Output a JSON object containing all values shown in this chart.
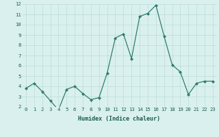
{
  "x": [
    0,
    1,
    2,
    3,
    4,
    5,
    6,
    7,
    8,
    9,
    10,
    11,
    12,
    13,
    14,
    15,
    16,
    17,
    18,
    19,
    20,
    21,
    22,
    23
  ],
  "y": [
    3.8,
    4.3,
    3.5,
    2.6,
    1.7,
    3.7,
    4.0,
    3.3,
    2.7,
    2.9,
    5.3,
    8.7,
    9.1,
    6.7,
    10.8,
    11.1,
    11.9,
    8.9,
    6.1,
    5.4,
    3.2,
    4.3,
    4.5,
    4.5
  ],
  "xlabel": "Humidex (Indice chaleur)",
  "ylim": [
    2,
    12
  ],
  "xlim": [
    -0.5,
    23.5
  ],
  "yticks": [
    2,
    3,
    4,
    5,
    6,
    7,
    8,
    9,
    10,
    11,
    12
  ],
  "xticks": [
    0,
    1,
    2,
    3,
    4,
    5,
    6,
    7,
    8,
    9,
    10,
    11,
    12,
    13,
    14,
    15,
    16,
    17,
    18,
    19,
    20,
    21,
    22,
    23
  ],
  "line_color": "#2e7d6e",
  "marker_color": "#2e7d6e",
  "bg_color": "#daf0ee",
  "grid_color": "#b8dcd8",
  "xlabel_color": "#1a5c50",
  "tick_label_color": "#1a5c50",
  "tick_fontsize": 5.2,
  "xlabel_fontsize": 6.0
}
